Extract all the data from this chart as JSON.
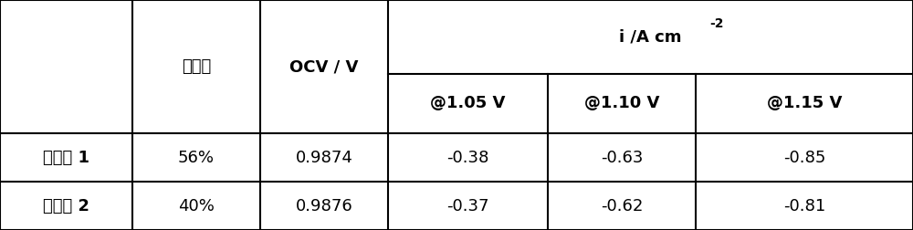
{
  "col2_header": "孔隙率",
  "col3_header": "OCV / V",
  "top_header_main": "i /A cm",
  "top_header_sup": "-2",
  "sub_headers": [
    "@1.05 V",
    "@1.10 V",
    "@1.15 V"
  ],
  "rows": [
    {
      "label": "实施例 1",
      "porosity": "56%",
      "ocv": "0.9874",
      "v105": "-0.38",
      "v110": "-0.63",
      "v115": "-0.85"
    },
    {
      "label": "实施例 2",
      "porosity": "40%",
      "ocv": "0.9876",
      "v105": "-0.37",
      "v110": "-0.62",
      "v115": "-0.81"
    }
  ],
  "bg_color": "#ffffff",
  "border_color": "#000000",
  "text_color": "#000000",
  "header_fontsize": 13,
  "cell_fontsize": 13,
  "fig_width": 10.0,
  "fig_height": 2.52
}
